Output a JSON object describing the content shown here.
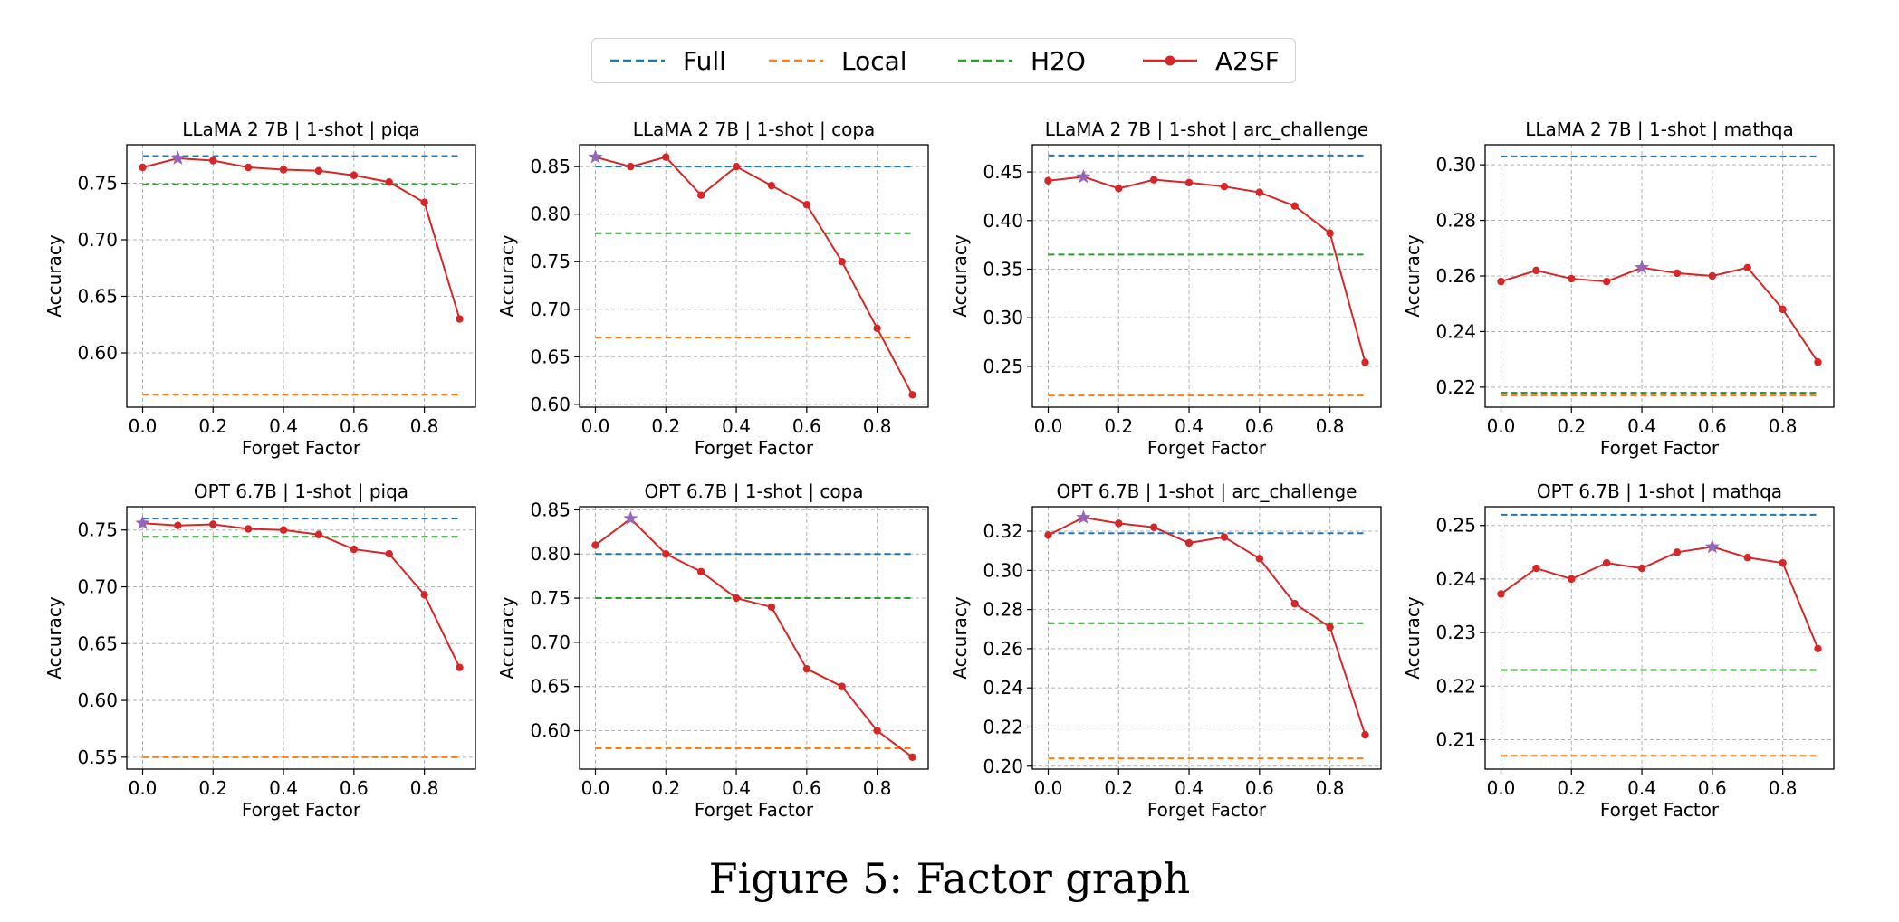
{
  "legend": {
    "items": [
      {
        "label": "Full",
        "color": "#1f77b4",
        "style": "dashed"
      },
      {
        "label": "Local",
        "color": "#ff7f0e",
        "style": "dashed"
      },
      {
        "label": "H2O",
        "color": "#2ca02c",
        "style": "dashed"
      },
      {
        "label": "A2SF",
        "color": "#d62728",
        "style": "solid-marker"
      }
    ]
  },
  "caption": "Figure 5: Factor graph",
  "chart_data": [
    {
      "type": "line",
      "title": "LLaMA 2 7B | 1-shot | piqa",
      "xlabel": "Forget Factor",
      "ylabel": "Accuracy",
      "xlim": [
        -0.045,
        0.945
      ],
      "ylim": [
        0.552,
        0.784
      ],
      "xticks": [
        "0.0",
        "0.2",
        "0.4",
        "0.6",
        "0.8"
      ],
      "yticks": [
        "0.60",
        "0.65",
        "0.70",
        "0.75"
      ],
      "hlines": {
        "Full": 0.774,
        "Local": 0.563,
        "H2O": 0.749
      },
      "x": [
        0.0,
        0.1,
        0.2,
        0.3,
        0.4,
        0.5,
        0.6,
        0.7,
        0.8,
        0.9
      ],
      "series": [
        {
          "name": "A2SF",
          "values": [
            0.764,
            0.772,
            0.77,
            0.764,
            0.762,
            0.761,
            0.757,
            0.751,
            0.733,
            0.63
          ]
        }
      ],
      "best_index": 1
    },
    {
      "type": "line",
      "title": "LLaMA 2 7B | 1-shot | copa",
      "xlabel": "Forget Factor",
      "ylabel": "Accuracy",
      "xlim": [
        -0.045,
        0.945
      ],
      "ylim": [
        0.597,
        0.873
      ],
      "xticks": [
        "0.0",
        "0.2",
        "0.4",
        "0.6",
        "0.8"
      ],
      "yticks": [
        "0.60",
        "0.65",
        "0.70",
        "0.75",
        "0.80",
        "0.85"
      ],
      "hlines": {
        "Full": 0.85,
        "Local": 0.67,
        "H2O": 0.78
      },
      "x": [
        0.0,
        0.1,
        0.2,
        0.3,
        0.4,
        0.5,
        0.6,
        0.7,
        0.8,
        0.9
      ],
      "series": [
        {
          "name": "A2SF",
          "values": [
            0.86,
            0.85,
            0.86,
            0.82,
            0.85,
            0.83,
            0.81,
            0.75,
            0.68,
            0.61
          ]
        }
      ],
      "best_index": 0
    },
    {
      "type": "line",
      "title": "LLaMA 2 7B | 1-shot | arc_challenge",
      "xlabel": "Forget Factor",
      "ylabel": "Accuracy",
      "xlim": [
        -0.045,
        0.945
      ],
      "ylim": [
        0.208,
        0.478
      ],
      "xticks": [
        "0.0",
        "0.2",
        "0.4",
        "0.6",
        "0.8"
      ],
      "yticks": [
        "0.25",
        "0.30",
        "0.35",
        "0.40",
        "0.45"
      ],
      "hlines": {
        "Full": 0.467,
        "Local": 0.22,
        "H2O": 0.365
      },
      "x": [
        0.0,
        0.1,
        0.2,
        0.3,
        0.4,
        0.5,
        0.6,
        0.7,
        0.8,
        0.9
      ],
      "series": [
        {
          "name": "A2SF",
          "values": [
            0.441,
            0.445,
            0.433,
            0.442,
            0.439,
            0.435,
            0.429,
            0.415,
            0.387,
            0.254
          ]
        }
      ],
      "best_index": 1
    },
    {
      "type": "line",
      "title": "LLaMA 2 7B | 1-shot | mathqa",
      "xlabel": "Forget Factor",
      "ylabel": "Accuracy",
      "xlim": [
        -0.045,
        0.945
      ],
      "ylim": [
        0.2128,
        0.3072
      ],
      "xticks": [
        "0.0",
        "0.2",
        "0.4",
        "0.6",
        "0.8"
      ],
      "yticks": [
        "0.22",
        "0.24",
        "0.26",
        "0.28",
        "0.30"
      ],
      "hlines": {
        "Full": 0.303,
        "Local": 0.217,
        "H2O": 0.218
      },
      "x": [
        0.0,
        0.1,
        0.2,
        0.3,
        0.4,
        0.5,
        0.6,
        0.7,
        0.8,
        0.9
      ],
      "series": [
        {
          "name": "A2SF",
          "values": [
            0.258,
            0.262,
            0.259,
            0.258,
            0.263,
            0.261,
            0.26,
            0.263,
            0.248,
            0.229
          ]
        }
      ],
      "best_index": 4
    },
    {
      "type": "line",
      "title": "OPT 6.7B | 1-shot | piqa",
      "xlabel": "Forget Factor",
      "ylabel": "Accuracy",
      "xlim": [
        -0.045,
        0.945
      ],
      "ylim": [
        0.5395,
        0.7705
      ],
      "xticks": [
        "0.0",
        "0.2",
        "0.4",
        "0.6",
        "0.8"
      ],
      "yticks": [
        "0.55",
        "0.60",
        "0.65",
        "0.70",
        "0.75"
      ],
      "hlines": {
        "Full": 0.76,
        "Local": 0.55,
        "H2O": 0.744
      },
      "x": [
        0.0,
        0.1,
        0.2,
        0.3,
        0.4,
        0.5,
        0.6,
        0.7,
        0.8,
        0.9
      ],
      "series": [
        {
          "name": "A2SF",
          "values": [
            0.756,
            0.754,
            0.755,
            0.751,
            0.75,
            0.746,
            0.733,
            0.729,
            0.693,
            0.629
          ]
        }
      ],
      "best_index": 0
    },
    {
      "type": "line",
      "title": "OPT 6.7B | 1-shot | copa",
      "xlabel": "Forget Factor",
      "ylabel": "Accuracy",
      "xlim": [
        -0.045,
        0.945
      ],
      "ylim": [
        0.5565,
        0.8535
      ],
      "xticks": [
        "0.0",
        "0.2",
        "0.4",
        "0.6",
        "0.8"
      ],
      "yticks": [
        "0.60",
        "0.65",
        "0.70",
        "0.75",
        "0.80",
        "0.85"
      ],
      "hlines": {
        "Full": 0.8,
        "Local": 0.58,
        "H2O": 0.75
      },
      "x": [
        0.0,
        0.1,
        0.2,
        0.3,
        0.4,
        0.5,
        0.6,
        0.7,
        0.8,
        0.9
      ],
      "series": [
        {
          "name": "A2SF",
          "values": [
            0.81,
            0.84,
            0.8,
            0.78,
            0.75,
            0.74,
            0.67,
            0.65,
            0.6,
            0.57
          ]
        }
      ],
      "best_index": 1
    },
    {
      "type": "line",
      "title": "OPT 6.7B | 1-shot | arc_challenge",
      "xlabel": "Forget Factor",
      "ylabel": "Accuracy",
      "xlim": [
        -0.045,
        0.945
      ],
      "ylim": [
        0.1985,
        0.3325
      ],
      "xticks": [
        "0.0",
        "0.2",
        "0.4",
        "0.6",
        "0.8"
      ],
      "yticks": [
        "0.20",
        "0.22",
        "0.24",
        "0.26",
        "0.28",
        "0.30",
        "0.32"
      ],
      "hlines": {
        "Full": 0.319,
        "Local": 0.204,
        "H2O": 0.273
      },
      "x": [
        0.0,
        0.1,
        0.2,
        0.3,
        0.4,
        0.5,
        0.6,
        0.7,
        0.8,
        0.9
      ],
      "series": [
        {
          "name": "A2SF",
          "values": [
            0.318,
            0.327,
            0.324,
            0.322,
            0.314,
            0.317,
            0.306,
            0.283,
            0.271,
            0.216
          ]
        }
      ],
      "best_index": 1
    },
    {
      "type": "line",
      "title": "OPT 6.7B | 1-shot | mathqa",
      "xlabel": "Forget Factor",
      "ylabel": "Accuracy",
      "xlim": [
        -0.045,
        0.945
      ],
      "ylim": [
        0.2045,
        0.2535
      ],
      "xticks": [
        "0.0",
        "0.2",
        "0.4",
        "0.6",
        "0.8"
      ],
      "yticks": [
        "0.21",
        "0.22",
        "0.23",
        "0.24",
        "0.25"
      ],
      "hlines": {
        "Full": 0.252,
        "Local": 0.207,
        "H2O": 0.223
      },
      "x": [
        0.0,
        0.1,
        0.2,
        0.3,
        0.4,
        0.5,
        0.6,
        0.7,
        0.8,
        0.9
      ],
      "series": [
        {
          "name": "A2SF",
          "values": [
            0.2372,
            0.242,
            0.24,
            0.243,
            0.242,
            0.245,
            0.246,
            0.244,
            0.243,
            0.227
          ]
        }
      ],
      "best_index": 6
    }
  ]
}
